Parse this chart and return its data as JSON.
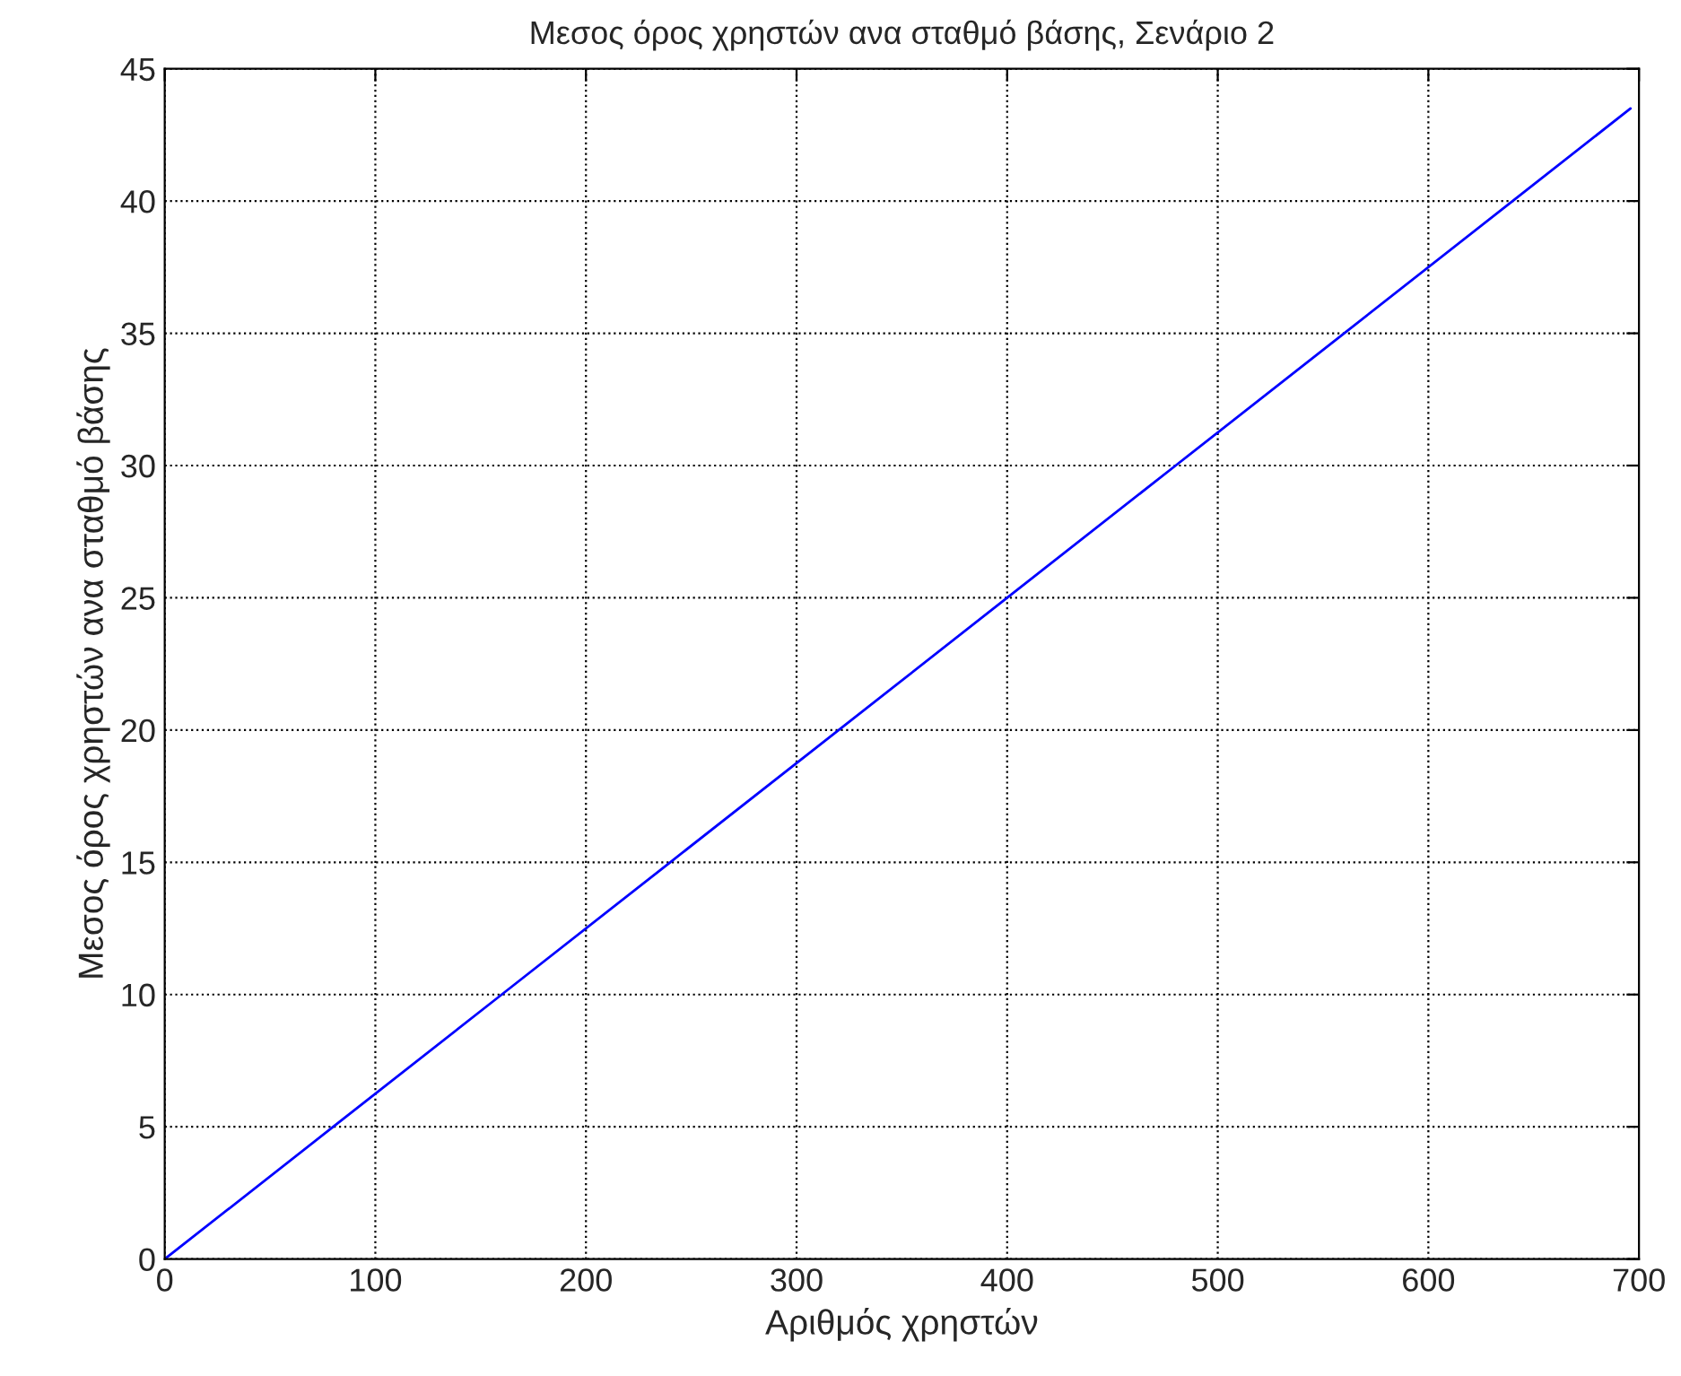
{
  "chart_data": {
    "type": "line",
    "title": "Μεσος όρος χρηστών ανα σταθμό βάσης, Σενάριο 2",
    "xlabel": "Αριθμός χρηστών",
    "ylabel": "Μεσος όρος χρηστών ανα σταθμό βάσης",
    "x": [
      0,
      80,
      160,
      240,
      320,
      400,
      480,
      560,
      640,
      696
    ],
    "series": [
      {
        "color": "#0000ff",
        "values": [
          0,
          5,
          10,
          15,
          20,
          25,
          30,
          35,
          40,
          43.5
        ]
      }
    ],
    "xlim": [
      0,
      700
    ],
    "xticks": [
      0,
      100,
      200,
      300,
      400,
      500,
      600,
      700
    ],
    "ylim": [
      0,
      45
    ],
    "yticks": [
      0,
      5,
      10,
      15,
      20,
      25,
      30,
      35,
      40,
      45
    ],
    "grid": true,
    "line_style": "solid",
    "marker": "none"
  }
}
